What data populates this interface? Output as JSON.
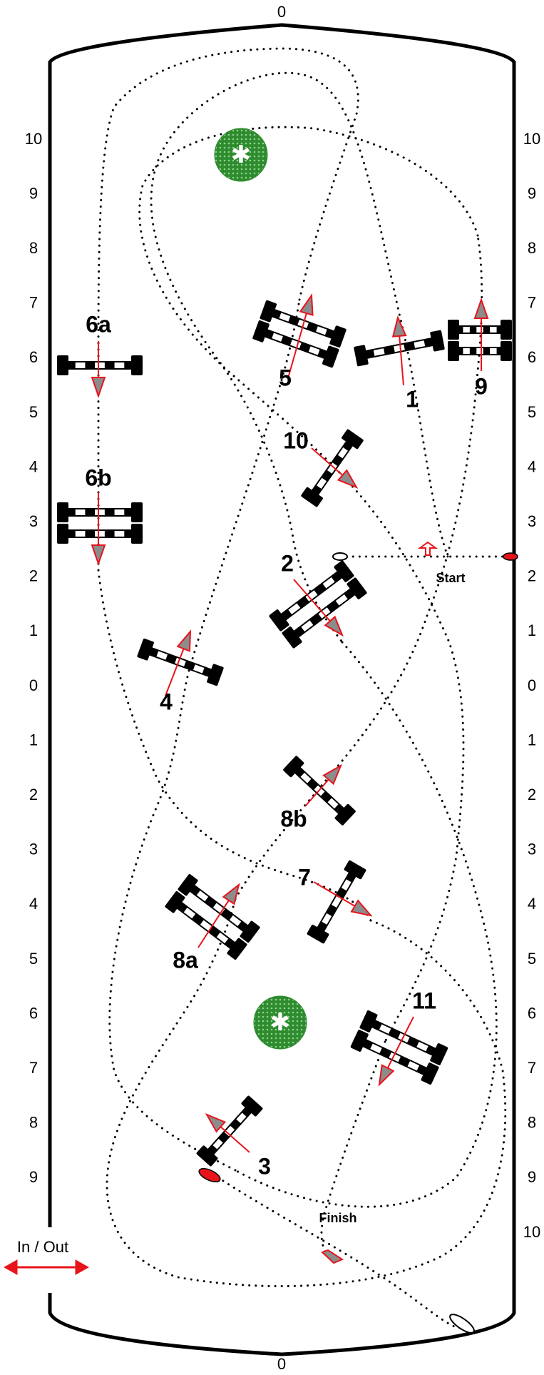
{
  "arena": {
    "top_label": "0",
    "bottom_label": "0",
    "left_scale": [
      "10",
      "9",
      "8",
      "7",
      "6",
      "5",
      "4",
      "3",
      "2",
      "1",
      "0",
      "1",
      "2",
      "3",
      "4",
      "5",
      "6",
      "7",
      "8",
      "9"
    ],
    "right_scale": [
      "10",
      "9",
      "8",
      "7",
      "6",
      "5",
      "4",
      "3",
      "2",
      "1",
      "0",
      "1",
      "2",
      "3",
      "4",
      "5",
      "6",
      "7",
      "8",
      "9",
      "10"
    ]
  },
  "labels": {
    "in_out": "In / Out",
    "start": "Start",
    "finish": "Finish"
  },
  "obstacles": [
    {
      "id": "1",
      "label": "1"
    },
    {
      "id": "2",
      "label": "2"
    },
    {
      "id": "3",
      "label": "3"
    },
    {
      "id": "4",
      "label": "4"
    },
    {
      "id": "5",
      "label": "5"
    },
    {
      "id": "6a",
      "label": "6a"
    },
    {
      "id": "6b",
      "label": "6b"
    },
    {
      "id": "7",
      "label": "7"
    },
    {
      "id": "8a",
      "label": "8a"
    },
    {
      "id": "8b",
      "label": "8b"
    },
    {
      "id": "9",
      "label": "9"
    },
    {
      "id": "10",
      "label": "10"
    },
    {
      "id": "11",
      "label": "11"
    }
  ],
  "colors": {
    "arrow": "#e8141b",
    "arrow_fill": "#8c8c8c",
    "tree": "#2e8b2e",
    "line": "#000000"
  },
  "icons": {
    "tree": "tree-icon",
    "in_out_arrow": "double-arrow-icon"
  }
}
